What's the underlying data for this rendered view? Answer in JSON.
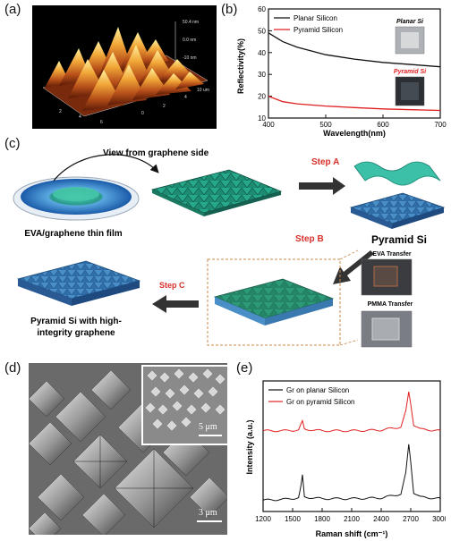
{
  "panels": {
    "a": "(a)",
    "b": "(b)",
    "c": "(c)",
    "d": "(d)",
    "e": "(e)"
  },
  "afm": {
    "z_ticks": [
      "50.4 nm",
      "0.0 nm",
      "-10 nm"
    ],
    "axis_ticks": [
      "2",
      "4",
      "6",
      "8",
      "10 um",
      "0",
      "2",
      "4",
      "6",
      "8",
      "10 um"
    ]
  },
  "chart_b": {
    "type": "line",
    "xlabel": "Wavelength(nm)",
    "ylabel": "Reflectivity(%)",
    "xlim": [
      400,
      700
    ],
    "ylim": [
      10,
      60
    ],
    "xticks": [
      "400",
      "500",
      "600",
      "700"
    ],
    "yticks": [
      "10",
      "20",
      "30",
      "40",
      "50",
      "60"
    ],
    "legend": [
      "Planar Silicon",
      "Pyramid Silicon"
    ],
    "inset_labels": [
      "Planar Si",
      "Pyramid Si"
    ],
    "colors": {
      "planar": "#111111",
      "pyramid": "#e02020"
    }
  },
  "schematic": {
    "view_label": "View from graphene side",
    "film_label": "EVA/graphene thin film",
    "step_a": "Step A",
    "step_b": "Step B",
    "step_c": "Step C",
    "pyramid_si": "Pyramid Si",
    "eva_transfer": "EVA Transfer",
    "pmma_transfer": "PMMA Transfer",
    "result_line1": "Pyramid Si with high-",
    "result_line2": "integrity graphene"
  },
  "sem": {
    "scale_main": "3 μm",
    "scale_inset": "5 μm"
  },
  "chart_e": {
    "type": "line",
    "xlabel": "Raman shift (cm⁻¹)",
    "ylabel": "Intensity (a.u.)",
    "xlim": [
      1200,
      3000
    ],
    "xticks": [
      "1200",
      "1500",
      "1800",
      "2100",
      "2400",
      "2700",
      "3000"
    ],
    "legend": [
      "Gr on planar Silicon",
      "Gr on pyramid Silicon"
    ],
    "colors": {
      "planar": "#111111",
      "pyramid": "#e02020"
    }
  },
  "chart_data": [
    {
      "type": "line",
      "xlabel": "Wavelength(nm)",
      "ylabel": "Reflectivity(%)",
      "xlim": [
        400,
        700
      ],
      "ylim": [
        10,
        60
      ],
      "series": [
        {
          "name": "Planar Silicon",
          "x": [
            400,
            425,
            450,
            500,
            550,
            600,
            650,
            700
          ],
          "y": [
            49,
            45,
            42.5,
            39,
            37,
            35.5,
            34.5,
            33.5
          ]
        },
        {
          "name": "Pyramid Silicon",
          "x": [
            400,
            425,
            450,
            500,
            550,
            600,
            650,
            700
          ],
          "y": [
            20,
            17.5,
            16.5,
            15.5,
            14.8,
            14.2,
            13.8,
            13.5
          ]
        }
      ]
    },
    {
      "type": "line",
      "xlabel": "Raman shift (cm⁻¹)",
      "ylabel": "Intensity (a.u.)",
      "xlim": [
        1200,
        3000
      ],
      "series": [
        {
          "name": "Gr on planar Silicon",
          "x": [
            1200,
            1400,
            1560,
            1585,
            1600,
            1620,
            1800,
            2100,
            2400,
            2600,
            2650,
            2680,
            2700,
            2730,
            2800,
            3000
          ],
          "y": [
            0.1,
            0.11,
            0.13,
            0.28,
            0.42,
            0.14,
            0.12,
            0.12,
            0.13,
            0.18,
            0.45,
            0.82,
            0.6,
            0.2,
            0.14,
            0.12
          ]
        },
        {
          "name": "Gr on pyramid Silicon",
          "x": [
            1200,
            1400,
            1560,
            1585,
            1600,
            1620,
            1800,
            2100,
            2400,
            2600,
            2650,
            2680,
            2700,
            2730,
            2800,
            3000
          ],
          "y": [
            1.0,
            1.0,
            1.01,
            1.08,
            1.12,
            1.02,
            1.0,
            1.0,
            1.01,
            1.05,
            1.25,
            1.5,
            1.35,
            1.08,
            1.02,
            1.0
          ]
        }
      ]
    }
  ]
}
